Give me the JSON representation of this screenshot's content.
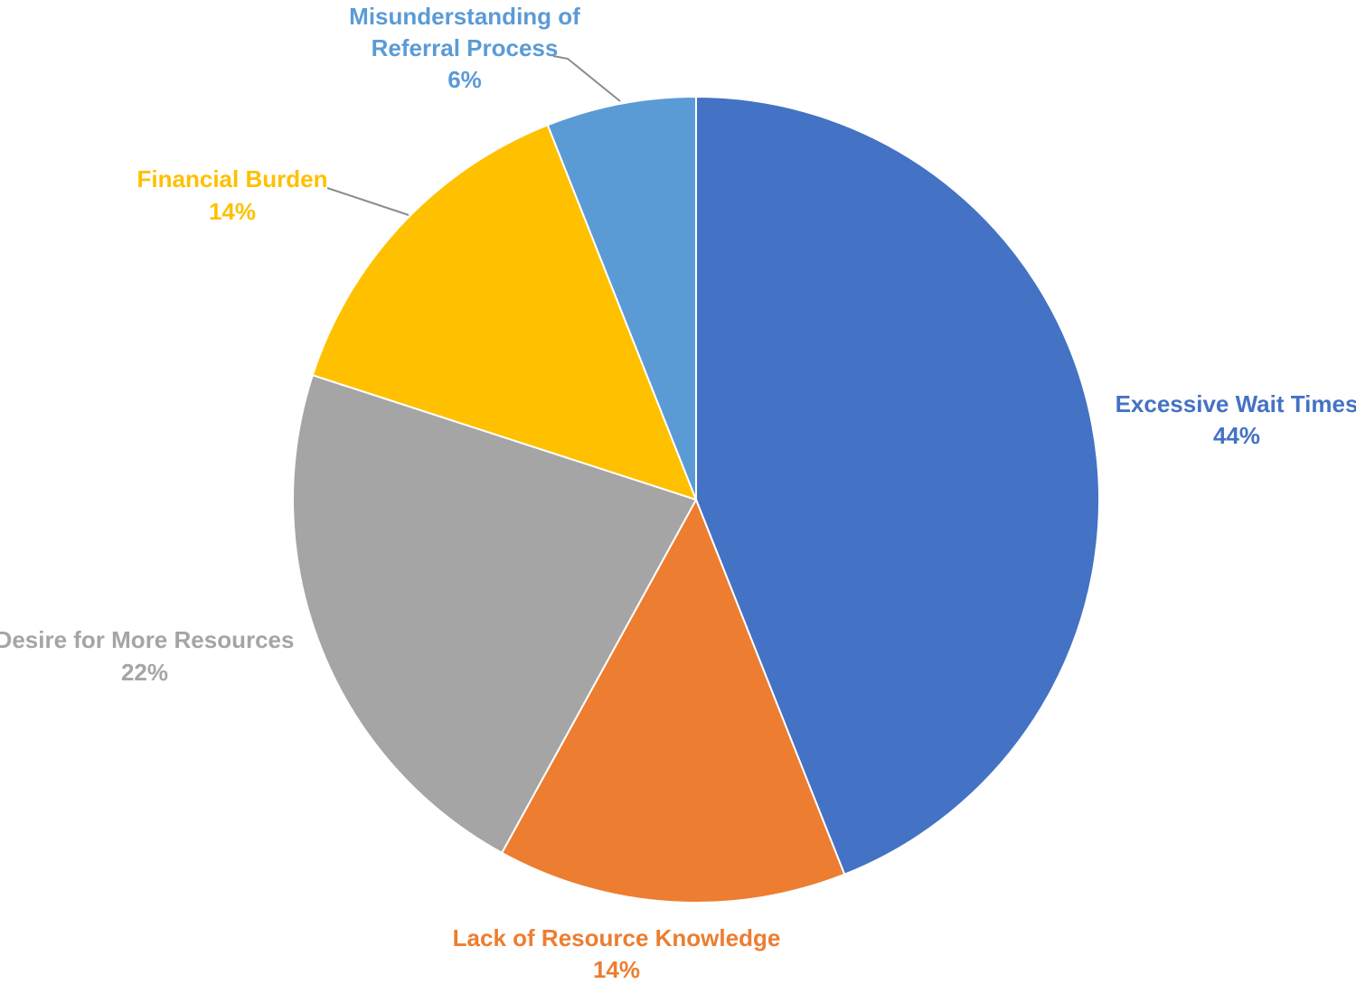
{
  "chart_data": {
    "type": "pie",
    "title": "",
    "slices": [
      {
        "label": "Excessive Wait Times",
        "pct_label": "44%",
        "value": 44,
        "color": "#4472C4"
      },
      {
        "label": "Lack of Resource Knowledge",
        "pct_label": "14%",
        "value": 14,
        "color": "#ED7D31"
      },
      {
        "label": "Desire for More Resources",
        "pct_label": "22%",
        "value": 22,
        "color": "#A5A5A5"
      },
      {
        "label": "Financial Burden",
        "pct_label": "14%",
        "value": 14,
        "color": "#FFC000"
      },
      {
        "label": "Misunderstanding of Referral Process",
        "pct_label": "6%",
        "value": 6,
        "color": "#5B9BD5"
      }
    ],
    "start_angle_deg": 0,
    "direction": "clockwise",
    "legend": "none",
    "data_labels": "outside, category name and percentage, colored to match slice"
  }
}
